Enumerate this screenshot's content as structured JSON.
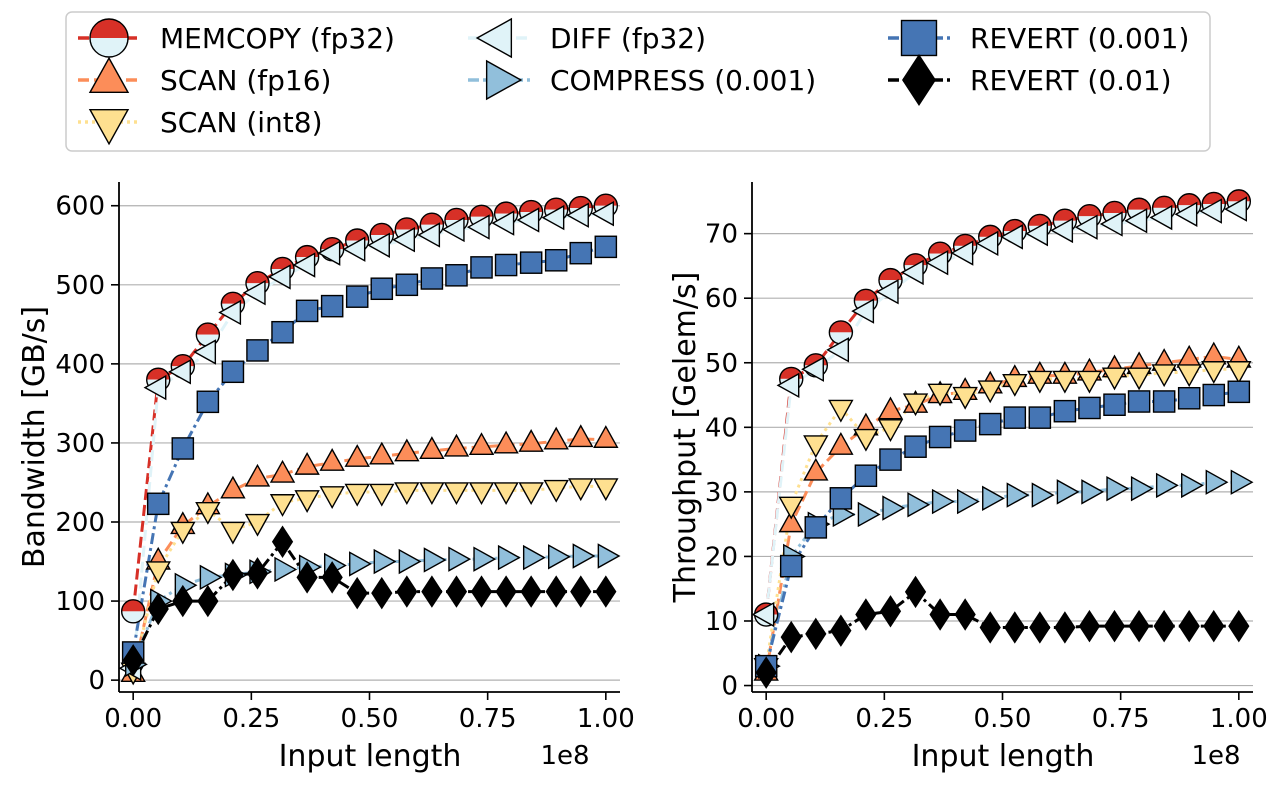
{
  "legend": {
    "entries": [
      {
        "key": "memcopy",
        "label": "MEMCOPY (fp32)",
        "color": "#d73027",
        "marker": "circle-half",
        "dash": "dashed"
      },
      {
        "key": "scan16",
        "label": "SCAN (fp16)",
        "color": "#fc8d59",
        "marker": "triangle-up",
        "dash": "dashed"
      },
      {
        "key": "scan8",
        "label": "SCAN (int8)",
        "color": "#fee090",
        "marker": "triangle-down",
        "dash": "dotted"
      },
      {
        "key": "diff",
        "label": "DIFF (fp32)",
        "color": "#e0f3f8",
        "marker": "triangle-left",
        "dash": "dashed"
      },
      {
        "key": "compress",
        "label": "COMPRESS (0.001)",
        "color": "#91bfdb",
        "marker": "triangle-right",
        "dash": "dashdot"
      },
      {
        "key": "rev001",
        "label": "REVERT (0.001)",
        "color": "#4575b4",
        "marker": "square",
        "dash": "dashdot"
      },
      {
        "key": "rev01",
        "label": "REVERT (0.01)",
        "color": "#000000",
        "marker": "diamond",
        "dash": "dashdot"
      }
    ]
  },
  "chart_data": [
    {
      "type": "line",
      "title": "",
      "xlabel": "Input length",
      "ylabel": "Bandwidth [GB/s]",
      "x_multiplier_label": "1e8",
      "xlim": [
        -0.03,
        1.03
      ],
      "ylim": [
        -15,
        630
      ],
      "xticks": [
        0,
        0.25,
        0.5,
        0.75,
        1.0
      ],
      "xtick_labels": [
        "0.00",
        "0.25",
        "0.50",
        "0.75",
        "1.00"
      ],
      "yticks": [
        0,
        100,
        200,
        300,
        400,
        500,
        600
      ],
      "ytick_labels": [
        "0",
        "100",
        "200",
        "300",
        "400",
        "500",
        "600"
      ],
      "grid": "y",
      "x": [
        0.0,
        0.053,
        0.105,
        0.158,
        0.211,
        0.263,
        0.316,
        0.368,
        0.421,
        0.474,
        0.526,
        0.579,
        0.632,
        0.684,
        0.737,
        0.789,
        0.842,
        0.895,
        0.947,
        1.0
      ],
      "series": [
        {
          "key": "memcopy",
          "name": "MEMCOPY (fp32)",
          "values": [
            87,
            380,
            397,
            437,
            476,
            502,
            520,
            535,
            545,
            556,
            563,
            570,
            576,
            582,
            586,
            590,
            592,
            595,
            597,
            600
          ]
        },
        {
          "key": "scan16",
          "name": "SCAN (fp16)",
          "values": [
            8,
            150,
            195,
            220,
            240,
            255,
            260,
            270,
            275,
            280,
            283,
            287,
            290,
            293,
            295,
            297,
            299,
            302,
            305,
            304
          ]
        },
        {
          "key": "scan8",
          "name": "SCAN (int8)",
          "values": [
            12,
            140,
            190,
            215,
            190,
            200,
            225,
            230,
            235,
            238,
            238,
            240,
            240,
            240,
            240,
            240,
            240,
            243,
            245,
            245
          ]
        },
        {
          "key": "diff",
          "name": "DIFF (fp32)",
          "values": [
            15,
            370,
            390,
            415,
            465,
            490,
            510,
            525,
            540,
            545,
            550,
            557,
            563,
            570,
            573,
            578,
            582,
            585,
            588,
            590
          ]
        },
        {
          "key": "compress",
          "name": "COMPRESS (0.001)",
          "values": [
            20,
            100,
            120,
            130,
            133,
            137,
            140,
            143,
            145,
            147,
            150,
            150,
            152,
            153,
            153,
            155,
            155,
            156,
            157,
            157
          ]
        },
        {
          "key": "rev001",
          "name": "REVERT (0.001)",
          "values": [
            35,
            223,
            293,
            352,
            390,
            417,
            440,
            467,
            473,
            485,
            495,
            500,
            508,
            512,
            522,
            525,
            528,
            531,
            540,
            548
          ]
        },
        {
          "key": "rev01",
          "name": "REVERT (0.01)",
          "values": [
            25,
            90,
            100,
            100,
            133,
            135,
            175,
            130,
            130,
            110,
            110,
            112,
            112,
            112,
            112,
            112,
            112,
            112,
            112,
            112
          ]
        }
      ]
    },
    {
      "type": "line",
      "title": "",
      "xlabel": "Input length",
      "ylabel": "Throughput [Gelem/s]",
      "x_multiplier_label": "1e8",
      "xlim": [
        -0.03,
        1.03
      ],
      "ylim": [
        -1,
        78
      ],
      "xticks": [
        0,
        0.25,
        0.5,
        0.75,
        1.0
      ],
      "xtick_labels": [
        "0.00",
        "0.25",
        "0.50",
        "0.75",
        "1.00"
      ],
      "yticks": [
        0,
        10,
        20,
        30,
        40,
        50,
        60,
        70
      ],
      "ytick_labels": [
        "0",
        "10",
        "20",
        "30",
        "40",
        "50",
        "60",
        "70"
      ],
      "grid": "y",
      "x": [
        0.0,
        0.053,
        0.105,
        0.158,
        0.211,
        0.263,
        0.316,
        0.368,
        0.421,
        0.474,
        0.526,
        0.579,
        0.632,
        0.684,
        0.737,
        0.789,
        0.842,
        0.895,
        0.947,
        1.0
      ],
      "series": [
        {
          "key": "memcopy",
          "name": "MEMCOPY (fp32)",
          "values": [
            11,
            47.5,
            49.6,
            54.7,
            59.6,
            62.8,
            65.1,
            66.9,
            68.1,
            69.5,
            70.4,
            71.2,
            72.0,
            72.7,
            73.2,
            73.7,
            74.0,
            74.4,
            74.6,
            75.0
          ]
        },
        {
          "key": "scan16",
          "name": "SCAN (fp16)",
          "values": [
            2,
            25,
            33,
            37,
            40,
            42.5,
            43.5,
            45,
            45.5,
            46.5,
            47.5,
            48,
            48,
            48.5,
            49,
            49.5,
            50,
            50.5,
            51,
            50.5
          ]
        },
        {
          "key": "scan8",
          "name": "SCAN (int8)",
          "values": [
            3,
            28,
            37.5,
            43,
            38.5,
            40,
            44,
            45.5,
            45,
            46,
            47,
            47.5,
            47.5,
            47.5,
            48,
            48,
            48.5,
            48.5,
            49,
            49
          ]
        },
        {
          "key": "diff",
          "name": "DIFF (fp32)",
          "values": [
            11,
            46.5,
            49,
            52,
            58,
            61,
            64,
            65.5,
            67,
            68.5,
            69.5,
            70,
            70.5,
            71,
            71.5,
            72,
            72.5,
            73,
            73.5,
            73.8
          ]
        },
        {
          "key": "compress",
          "name": "COMPRESS (0.001)",
          "values": [
            3,
            20,
            25,
            26.5,
            26.5,
            27.5,
            28,
            28.5,
            28.5,
            29,
            29.5,
            29.5,
            30,
            30,
            30.5,
            30.5,
            31,
            31,
            31.5,
            31.5
          ]
        },
        {
          "key": "rev001",
          "name": "REVERT (0.001)",
          "values": [
            3,
            18.5,
            24.5,
            29,
            32.5,
            35,
            37,
            38.5,
            39.5,
            40.5,
            41.5,
            41.5,
            42.5,
            43,
            43.5,
            44,
            44,
            44.5,
            45,
            45.5
          ]
        },
        {
          "key": "rev01",
          "name": "REVERT (0.01)",
          "values": [
            2,
            7.5,
            8,
            8.5,
            11,
            11.5,
            14.5,
            11,
            11,
            9,
            9,
            9,
            9,
            9.2,
            9.2,
            9.2,
            9.2,
            9.2,
            9.2,
            9.2
          ]
        }
      ]
    }
  ]
}
